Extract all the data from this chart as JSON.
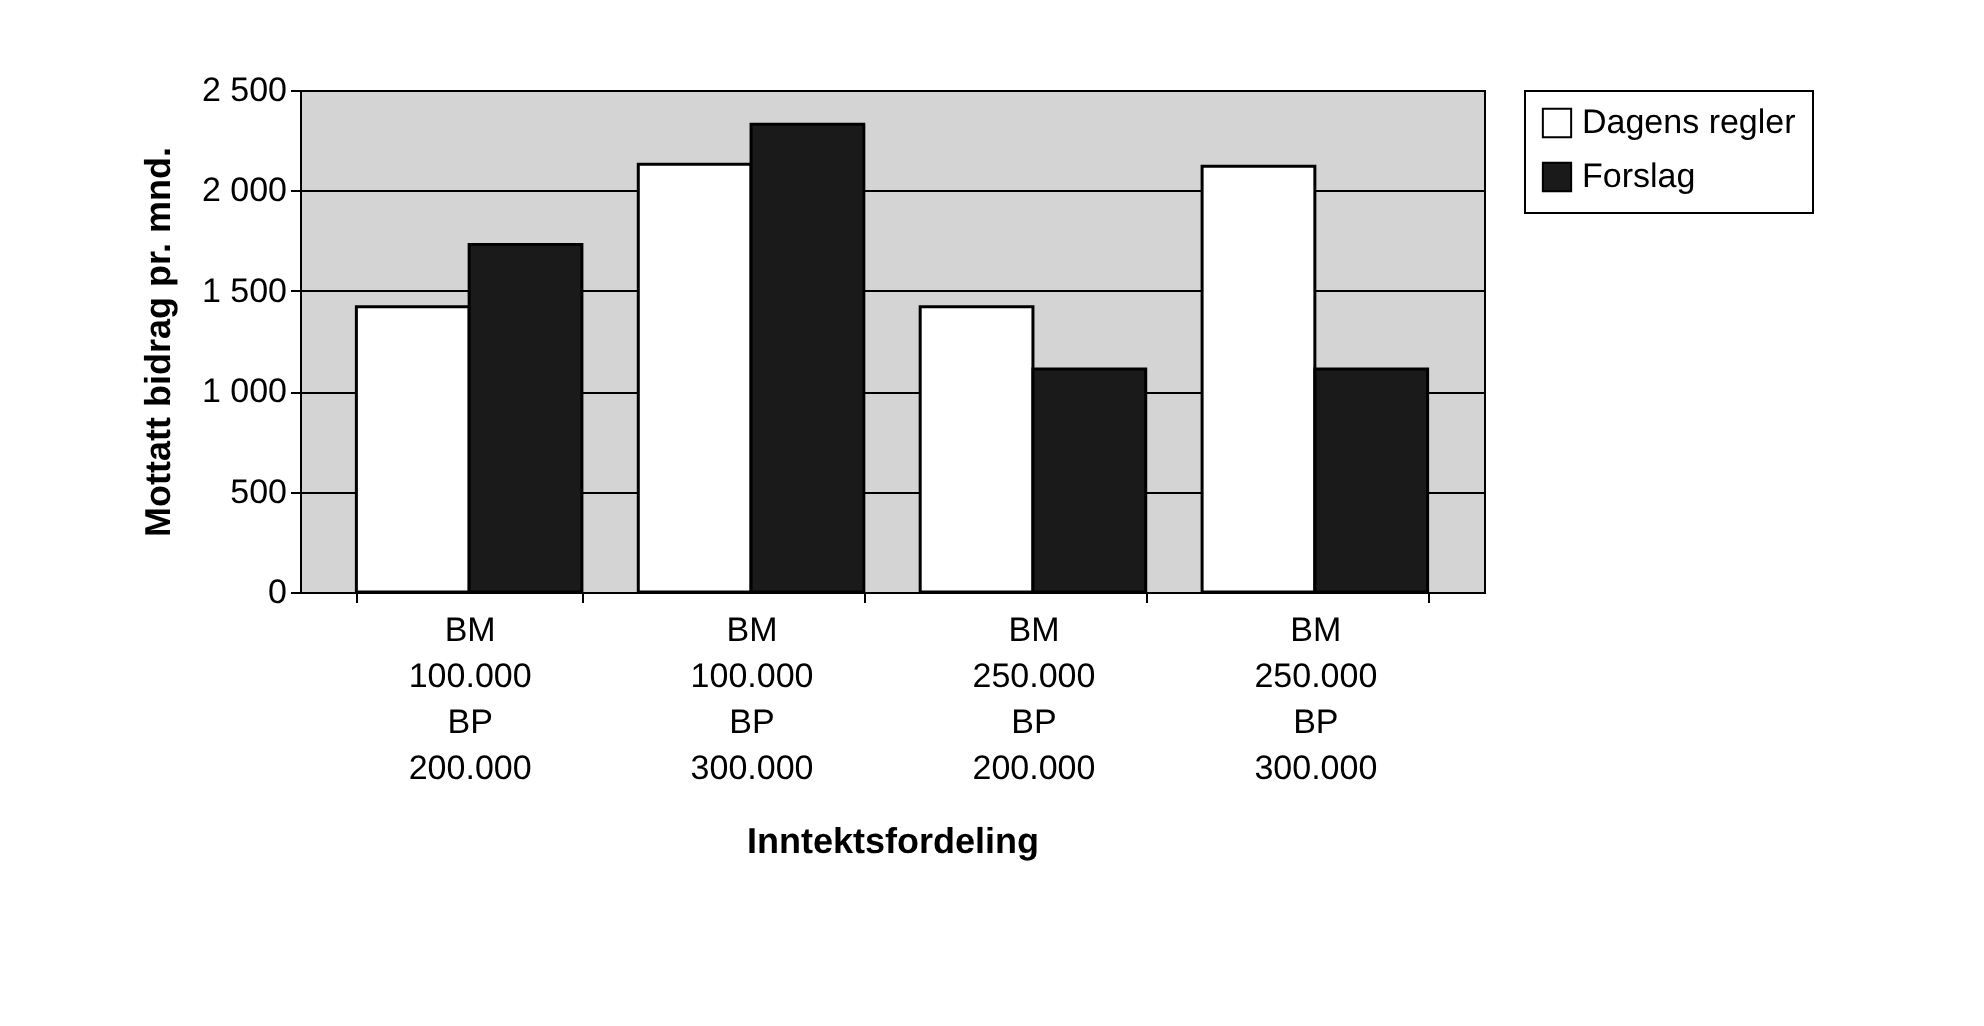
{
  "chart_data": {
    "type": "bar",
    "xlabel": "Inntektsfordeling",
    "ylabel": "Mottatt bidrag pr. mnd.",
    "categories": [
      "BM\n100.000\nBP\n200.000",
      "BM\n100.000\nBP\n300.000",
      "BM\n250.000\nBP\n200.000",
      "BM\n250.000\nBP\n300.000"
    ],
    "series": [
      {
        "name": "Dagens regler",
        "color": "#ffffff",
        "values": [
          1420,
          2130,
          1420,
          2120
        ]
      },
      {
        "name": "Forslag",
        "color": "#1a1a1a",
        "values": [
          1730,
          2330,
          1110,
          1110
        ]
      }
    ],
    "ylim": [
      0,
      2500
    ],
    "yticks": [
      0,
      500,
      {
        "value": 1000,
        "label": "1 000"
      },
      {
        "value": 1500,
        "label": "1 500"
      },
      {
        "value": 2000,
        "label": "2 000"
      },
      {
        "value": 2500,
        "label": "2 500"
      }
    ],
    "grid": "y",
    "legend": "right"
  }
}
